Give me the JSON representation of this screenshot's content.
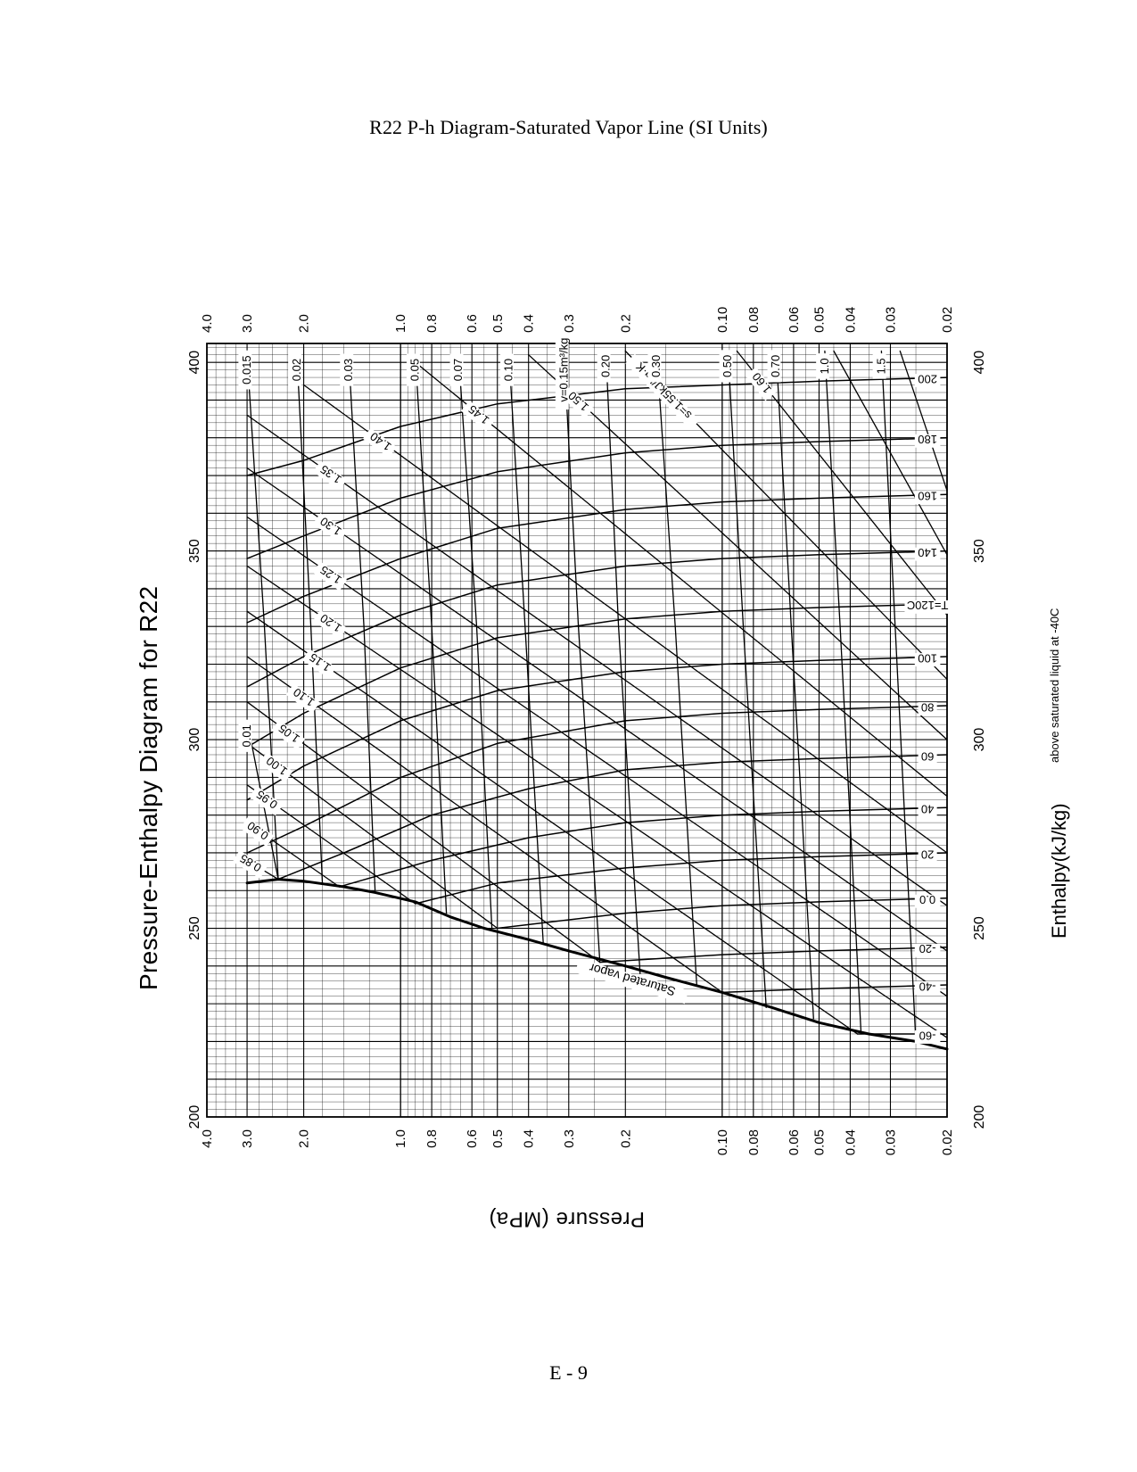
{
  "page": {
    "title": "R22 P-h Diagram-Saturated Vapor Line (SI Units)",
    "footer": "E - 9"
  },
  "chart_data": {
    "type": "line",
    "title": "Pressure-Enthalpy Diagram for R22",
    "xlabel": "Pressure (MPa)",
    "ylabel": "Enthalpy(kJ/kg)",
    "ylabel_note": "above saturated liquid at -40C",
    "x_scale": "log",
    "xlim": [
      0.02,
      4.0
    ],
    "ylim": [
      200,
      405
    ],
    "grid": true,
    "pressure_ticks": [
      {
        "v": 4.0,
        "t": "4.0"
      },
      {
        "v": 3.0,
        "t": "3.0"
      },
      {
        "v": 2.0,
        "t": "2.0"
      },
      {
        "v": 1.0,
        "t": "1.0"
      },
      {
        "v": 0.8,
        "t": "0.8"
      },
      {
        "v": 0.6,
        "t": "0.6"
      },
      {
        "v": 0.5,
        "t": "0.5"
      },
      {
        "v": 0.4,
        "t": "0.4"
      },
      {
        "v": 0.3,
        "t": "0.3"
      },
      {
        "v": 0.2,
        "t": "0.2"
      },
      {
        "v": 0.1,
        "t": "0.10"
      },
      {
        "v": 0.08,
        "t": "0.08"
      },
      {
        "v": 0.06,
        "t": "0.06"
      },
      {
        "v": 0.05,
        "t": "0.05"
      },
      {
        "v": 0.04,
        "t": "0.04"
      },
      {
        "v": 0.03,
        "t": "0.03"
      },
      {
        "v": 0.02,
        "t": "0.02"
      }
    ],
    "enthalpy_ticks": [
      {
        "v": 200,
        "t": "200"
      },
      {
        "v": 250,
        "t": "250"
      },
      {
        "v": 300,
        "t": "300"
      },
      {
        "v": 350,
        "t": "350"
      },
      {
        "v": 400,
        "t": "400"
      }
    ],
    "saturated_vapor": {
      "name": "Saturated vapor",
      "points": [
        [
          3.0,
          262
        ],
        [
          2.4,
          263
        ],
        [
          2.0,
          262.5
        ],
        [
          1.5,
          261
        ],
        [
          1.2,
          259.5
        ],
        [
          0.9,
          257
        ],
        [
          0.7,
          253
        ],
        [
          0.55,
          250
        ],
        [
          0.4,
          247
        ],
        [
          0.3,
          244
        ],
        [
          0.2,
          240
        ],
        [
          0.15,
          237
        ],
        [
          0.1,
          233
        ],
        [
          0.07,
          229
        ],
        [
          0.05,
          225
        ],
        [
          0.035,
          222
        ],
        [
          0.025,
          220
        ],
        [
          0.02,
          218
        ]
      ]
    },
    "isotherms": [
      {
        "label": "-60",
        "pairs": [
          [
            0.038,
            222
          ],
          [
            0.02,
            222
          ]
        ]
      },
      {
        "label": "-40",
        "pairs": [
          [
            0.1,
            233
          ],
          [
            0.05,
            234
          ],
          [
            0.02,
            235
          ]
        ]
      },
      {
        "label": "-20",
        "pairs": [
          [
            0.24,
            241
          ],
          [
            0.1,
            243
          ],
          [
            0.05,
            244
          ],
          [
            0.02,
            245
          ]
        ]
      },
      {
        "label": "0.0",
        "pairs": [
          [
            0.5,
            250
          ],
          [
            0.2,
            254
          ],
          [
            0.1,
            256
          ],
          [
            0.05,
            257
          ],
          [
            0.02,
            258
          ]
        ]
      },
      {
        "label": "20",
        "pairs": [
          [
            0.9,
            256.5
          ],
          [
            0.5,
            262
          ],
          [
            0.2,
            266
          ],
          [
            0.1,
            268
          ],
          [
            0.05,
            269
          ],
          [
            0.02,
            270
          ]
        ]
      },
      {
        "label": "40",
        "pairs": [
          [
            1.55,
            261
          ],
          [
            0.8,
            268
          ],
          [
            0.4,
            274
          ],
          [
            0.2,
            278
          ],
          [
            0.1,
            280
          ],
          [
            0.05,
            281
          ],
          [
            0.02,
            282
          ]
        ]
      },
      {
        "label": "60",
        "pairs": [
          [
            2.4,
            263
          ],
          [
            1.5,
            270
          ],
          [
            0.8,
            280
          ],
          [
            0.4,
            287
          ],
          [
            0.2,
            292
          ],
          [
            0.1,
            294
          ],
          [
            0.05,
            295
          ],
          [
            0.02,
            296
          ]
        ]
      },
      {
        "label": "80",
        "pairs": [
          [
            3.0,
            270
          ],
          [
            2.0,
            277
          ],
          [
            1.0,
            290
          ],
          [
            0.5,
            299
          ],
          [
            0.2,
            305
          ],
          [
            0.1,
            307
          ],
          [
            0.05,
            308
          ],
          [
            0.02,
            309
          ]
        ]
      },
      {
        "label": "100",
        "pairs": [
          [
            3.0,
            284
          ],
          [
            2.0,
            293
          ],
          [
            1.0,
            305
          ],
          [
            0.5,
            313
          ],
          [
            0.2,
            318
          ],
          [
            0.1,
            320
          ],
          [
            0.05,
            321
          ],
          [
            0.02,
            322
          ]
        ]
      },
      {
        "label": "T=120C",
        "pairs": [
          [
            3.0,
            298
          ],
          [
            2.0,
            307
          ],
          [
            1.0,
            319
          ],
          [
            0.5,
            327
          ],
          [
            0.2,
            332
          ],
          [
            0.1,
            334
          ],
          [
            0.05,
            335
          ],
          [
            0.02,
            336
          ]
        ]
      },
      {
        "label": "140",
        "pairs": [
          [
            3.0,
            314
          ],
          [
            2.0,
            322
          ],
          [
            1.0,
            333
          ],
          [
            0.5,
            341
          ],
          [
            0.2,
            346
          ],
          [
            0.1,
            348
          ],
          [
            0.05,
            349
          ],
          [
            0.02,
            350
          ]
        ]
      },
      {
        "label": "160",
        "pairs": [
          [
            3.0,
            331
          ],
          [
            2.0,
            338
          ],
          [
            1.0,
            348
          ],
          [
            0.5,
            356
          ],
          [
            0.2,
            361
          ],
          [
            0.1,
            363
          ],
          [
            0.05,
            364
          ],
          [
            0.02,
            365
          ]
        ]
      },
      {
        "label": "180",
        "pairs": [
          [
            3.0,
            348
          ],
          [
            2.0,
            354
          ],
          [
            1.0,
            364
          ],
          [
            0.5,
            371
          ],
          [
            0.2,
            376
          ],
          [
            0.1,
            378
          ],
          [
            0.05,
            379
          ],
          [
            0.02,
            380
          ]
        ]
      },
      {
        "label": "200",
        "pairs": [
          [
            3.0,
            370
          ],
          [
            2.0,
            374
          ],
          [
            1.0,
            383
          ],
          [
            0.5,
            389
          ],
          [
            0.2,
            393
          ],
          [
            0.1,
            394
          ],
          [
            0.05,
            395
          ],
          [
            0.02,
            396
          ]
        ]
      }
    ],
    "entropy_lines": [
      {
        "label": "0.85",
        "pairs": [
          [
            3.0,
            268
          ],
          [
            2.4,
            263
          ]
        ]
      },
      {
        "label": "0.90",
        "pairs": [
          [
            3.0,
            278
          ],
          [
            1.55,
            261
          ]
        ]
      },
      {
        "label": "0.95",
        "pairs": [
          [
            3.0,
            288
          ],
          [
            0.9,
            256.5
          ]
        ]
      },
      {
        "label": "1.00",
        "pairs": [
          [
            3.0,
            299
          ],
          [
            0.5,
            250
          ]
        ]
      },
      {
        "label": "1.05",
        "pairs": [
          [
            3.0,
            310
          ],
          [
            0.24,
            241
          ]
        ]
      },
      {
        "label": "1.10",
        "pairs": [
          [
            3.0,
            322
          ],
          [
            0.1,
            233
          ]
        ]
      },
      {
        "label": "1.15",
        "pairs": [
          [
            3.0,
            334
          ],
          [
            0.038,
            222
          ]
        ]
      },
      {
        "label": "1.20",
        "pairs": [
          [
            3.0,
            346
          ],
          [
            0.02,
            221
          ]
        ]
      },
      {
        "label": "1.25",
        "pairs": [
          [
            3.0,
            359
          ],
          [
            0.02,
            232
          ]
        ]
      },
      {
        "label": "1.30",
        "pairs": [
          [
            3.0,
            372
          ],
          [
            0.02,
            244
          ]
        ]
      },
      {
        "label": "1.35",
        "pairs": [
          [
            3.0,
            386
          ],
          [
            0.02,
            256
          ]
        ]
      },
      {
        "label": "1.40",
        "pairs": [
          [
            2.0,
            394
          ],
          [
            0.02,
            270
          ]
        ]
      },
      {
        "label": "1.45",
        "pairs": [
          [
            0.9,
            400
          ],
          [
            0.02,
            285
          ]
        ]
      },
      {
        "label": "1.50",
        "pairs": [
          [
            0.4,
            402
          ],
          [
            0.02,
            300
          ]
        ]
      },
      {
        "label": "s=1.55kJ/kg·K",
        "pairs": [
          [
            0.2,
            403
          ],
          [
            0.02,
            316
          ]
        ]
      },
      {
        "label": "1.60",
        "pairs": [
          [
            0.09,
            403
          ],
          [
            0.02,
            333
          ]
        ]
      },
      {
        "label": "",
        "pairs": [
          [
            0.045,
            403
          ],
          [
            0.02,
            349
          ]
        ]
      },
      {
        "label": "",
        "pairs": [
          [
            0.028,
            403
          ],
          [
            0.02,
            366
          ]
        ]
      }
    ],
    "specific_volume_lines": [
      {
        "label": "0.01",
        "pairs": [
          [
            3.0,
            305
          ],
          [
            2.4,
            263
          ]
        ]
      },
      {
        "label": "0.015",
        "pairs": [
          [
            3.0,
            402
          ],
          [
            2.65,
            330
          ],
          [
            2.4,
            263
          ]
        ]
      },
      {
        "label": "0.02",
        "pairs": [
          [
            2.1,
            402
          ],
          [
            1.9,
            330
          ],
          [
            1.75,
            262
          ]
        ]
      },
      {
        "label": "0.03",
        "pairs": [
          [
            1.45,
            402
          ],
          [
            1.3,
            330
          ],
          [
            1.2,
            260
          ]
        ]
      },
      {
        "label": "0.05",
        "pairs": [
          [
            0.9,
            402
          ],
          [
            0.8,
            330
          ],
          [
            0.72,
            254
          ]
        ]
      },
      {
        "label": "0.07",
        "pairs": [
          [
            0.66,
            402
          ],
          [
            0.58,
            330
          ],
          [
            0.52,
            250
          ]
        ]
      },
      {
        "label": "0.10",
        "pairs": [
          [
            0.46,
            402
          ],
          [
            0.41,
            330
          ],
          [
            0.36,
            246
          ]
        ]
      },
      {
        "label": "v=0.15m³/kg",
        "pairs": [
          [
            0.31,
            402
          ],
          [
            0.28,
            330
          ],
          [
            0.24,
            241
          ]
        ]
      },
      {
        "label": "0.20",
        "pairs": [
          [
            0.23,
            403
          ],
          [
            0.21,
            330
          ],
          [
            0.18,
            238
          ]
        ]
      },
      {
        "label": "0.30",
        "pairs": [
          [
            0.16,
            403
          ],
          [
            0.14,
            330
          ],
          [
            0.12,
            235
          ]
        ]
      },
      {
        "label": "0.50",
        "pairs": [
          [
            0.096,
            403
          ],
          [
            0.086,
            330
          ],
          [
            0.073,
            229
          ]
        ]
      },
      {
        "label": "0.70",
        "pairs": [
          [
            0.068,
            403
          ],
          [
            0.061,
            330
          ],
          [
            0.052,
            226
          ]
        ]
      },
      {
        "label": "1.0",
        "pairs": [
          [
            0.048,
            403
          ],
          [
            0.043,
            330
          ],
          [
            0.037,
            222
          ]
        ]
      },
      {
        "label": "1.5",
        "pairs": [
          [
            0.032,
            403
          ],
          [
            0.029,
            330
          ],
          [
            0.025,
            220
          ]
        ]
      }
    ]
  }
}
